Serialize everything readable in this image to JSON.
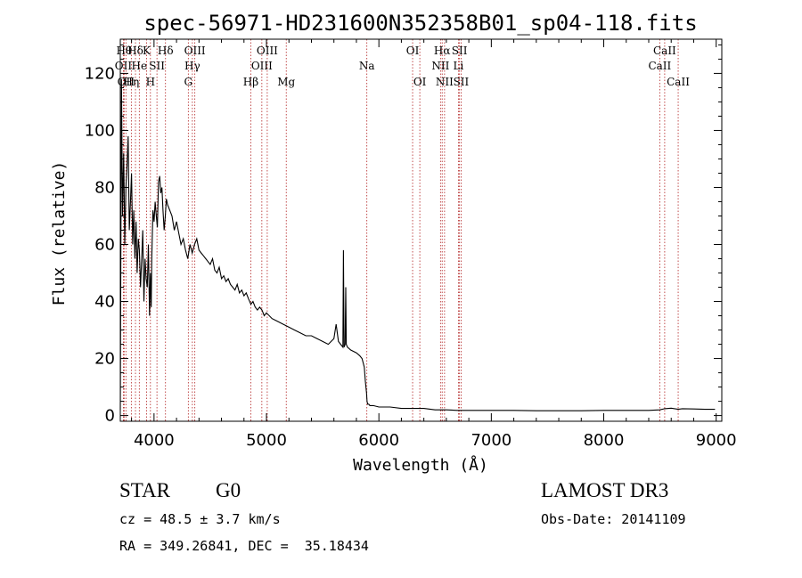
{
  "chart_data": {
    "type": "line",
    "title": "spec-56971-HD231600N352358B01_sp04-118.fits",
    "xlabel": "Wavelength (Å)",
    "ylabel": "Flux (relative)",
    "xlim": [
      3700,
      9050
    ],
    "ylim": [
      -2,
      132
    ],
    "x_ticks": [
      4000,
      5000,
      6000,
      7000,
      8000,
      9000
    ],
    "y_ticks": [
      0,
      20,
      40,
      60,
      80,
      100,
      120
    ],
    "grid": false,
    "line_color": "#000000",
    "marker_color": "#b22222",
    "series": [
      {
        "name": "flux",
        "x": [
          3700,
          3710,
          3720,
          3730,
          3740,
          3750,
          3760,
          3770,
          3780,
          3790,
          3800,
          3810,
          3820,
          3830,
          3840,
          3850,
          3860,
          3870,
          3880,
          3890,
          3900,
          3910,
          3920,
          3930,
          3940,
          3950,
          3960,
          3968,
          3975,
          3980,
          3990,
          4000,
          4010,
          4020,
          4030,
          4040,
          4050,
          4060,
          4070,
          4080,
          4090,
          4100,
          4110,
          4120,
          4140,
          4160,
          4180,
          4200,
          4220,
          4240,
          4260,
          4280,
          4300,
          4320,
          4340,
          4360,
          4380,
          4400,
          4420,
          4440,
          4460,
          4480,
          4500,
          4520,
          4540,
          4560,
          4580,
          4600,
          4620,
          4640,
          4660,
          4680,
          4700,
          4720,
          4740,
          4760,
          4780,
          4800,
          4820,
          4840,
          4861,
          4880,
          4900,
          4920,
          4940,
          4960,
          4980,
          5000,
          5050,
          5100,
          5150,
          5200,
          5250,
          5300,
          5350,
          5400,
          5450,
          5500,
          5550,
          5600,
          5620,
          5640,
          5660,
          5680,
          5685,
          5690,
          5700,
          5705,
          5710,
          5720,
          5750,
          5800,
          5830,
          5850,
          5870,
          5880,
          5890,
          5895,
          5900,
          5910,
          5920,
          5950,
          6000,
          6100,
          6200,
          6300,
          6400,
          6500,
          6563,
          6600,
          6700,
          6800,
          6900,
          7000,
          7200,
          7400,
          7600,
          7800,
          8000,
          8200,
          8400,
          8498,
          8542,
          8600,
          8662,
          8700,
          8800,
          8900,
          8990
        ],
        "y": [
          2,
          118,
          70,
          92,
          60,
          80,
          88,
          98,
          65,
          75,
          85,
          60,
          72,
          55,
          68,
          50,
          62,
          58,
          45,
          55,
          65,
          40,
          55,
          48,
          45,
          60,
          35,
          50,
          38,
          55,
          72,
          68,
          75,
          70,
          66,
          82,
          84,
          78,
          80,
          72,
          65,
          70,
          76,
          74,
          72,
          70,
          65,
          68,
          64,
          60,
          62,
          58,
          55,
          60,
          57,
          60,
          62,
          58,
          57,
          56,
          55,
          54,
          53,
          55,
          51,
          50,
          52,
          48,
          49,
          47,
          48,
          46,
          45,
          44,
          46,
          43,
          44,
          42,
          43,
          41,
          39,
          40,
          38,
          37,
          38,
          37,
          35,
          36,
          34,
          33,
          32,
          31,
          30,
          29,
          28,
          28,
          27,
          26,
          25,
          27,
          32,
          26,
          25,
          24,
          58,
          24,
          25,
          45,
          25,
          24,
          23,
          22,
          21,
          20,
          17,
          12,
          8,
          5,
          4,
          4,
          3.5,
          3.5,
          3,
          3,
          2.5,
          2.5,
          2.5,
          2,
          2,
          2,
          1.8,
          1.8,
          1.8,
          1.8,
          1.8,
          1.7,
          1.7,
          1.7,
          1.8,
          1.8,
          1.8,
          2.0,
          2.4,
          2.6,
          2.2,
          2.4,
          2.3,
          2.2,
          2.2
        ]
      }
    ],
    "line_markers": [
      {
        "wavelength": 3727,
        "label": "OII",
        "row": 1
      },
      {
        "wavelength": 3734,
        "label": "Hθ",
        "row": 0
      },
      {
        "wavelength": 3750,
        "label": "OII",
        "row": 2
      },
      {
        "wavelength": 3798,
        "label": "Hη",
        "row": 2
      },
      {
        "wavelength": 3835,
        "label": "Hδ",
        "row": 0
      },
      {
        "wavelength": 3869,
        "label": "He",
        "row": 1
      },
      {
        "wavelength": 3934,
        "label": "K",
        "row": 0
      },
      {
        "wavelength": 3968,
        "label": "H",
        "row": 2
      },
      {
        "wavelength": 4026,
        "label": "SII",
        "row": 1
      },
      {
        "wavelength": 4102,
        "label": "Hδ",
        "row": 0
      },
      {
        "wavelength": 4305,
        "label": "G",
        "row": 2
      },
      {
        "wavelength": 4341,
        "label": "Hγ",
        "row": 1
      },
      {
        "wavelength": 4363,
        "label": "OIII",
        "row": 0
      },
      {
        "wavelength": 4861,
        "label": "Hβ",
        "row": 2
      },
      {
        "wavelength": 4959,
        "label": "OIII",
        "row": 1
      },
      {
        "wavelength": 5007,
        "label": "OIII",
        "row": 0
      },
      {
        "wavelength": 5176,
        "label": "Mg",
        "row": 2
      },
      {
        "wavelength": 5893,
        "label": "Na",
        "row": 1
      },
      {
        "wavelength": 6300,
        "label": "OI",
        "row": 0
      },
      {
        "wavelength": 6364,
        "label": "OI",
        "row": 2
      },
      {
        "wavelength": 6548,
        "label": "NII",
        "row": 1
      },
      {
        "wavelength": 6563,
        "label": "Hα",
        "row": 0
      },
      {
        "wavelength": 6584,
        "label": "NII",
        "row": 2
      },
      {
        "wavelength": 6707,
        "label": "Li",
        "row": 1
      },
      {
        "wavelength": 6717,
        "label": "SII",
        "row": 0
      },
      {
        "wavelength": 6731,
        "label": "SII",
        "row": 2
      },
      {
        "wavelength": 8498,
        "label": "CaII",
        "row": 1
      },
      {
        "wavelength": 8542,
        "label": "CaII",
        "row": 0
      },
      {
        "wavelength": 8662,
        "label": "CaII",
        "row": 2
      }
    ]
  },
  "info": {
    "object_class": "STAR",
    "subclass": "G0",
    "survey": "LAMOST DR3",
    "velocity": "cz = 48.5 ± 3.7 km/s",
    "obs_date": "Obs-Date: 20141109",
    "coords": "RA = 349.26841, DEC =  35.18434"
  }
}
